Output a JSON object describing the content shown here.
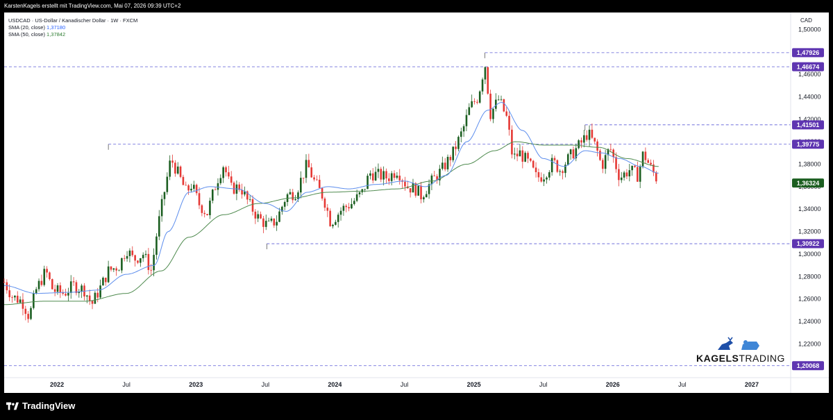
{
  "header": {
    "credit": "KarstenKagels erstellt mit TradingView.com, Mai 07, 2026 09:39 UTC+2"
  },
  "legend": {
    "symbol": "USDCAD · US-Dollar / Kanadischer Dollar · 1W · FXCM",
    "sma20_label": "SMA (20, close)",
    "sma20_value": "1,37180",
    "sma50_label": "SMA (50, close)",
    "sma50_value": "1,37842"
  },
  "currency": "CAD",
  "footer": {
    "logo_text": "TradingView"
  },
  "brand": {
    "part1": "KAGELS",
    "part2": "TRADING"
  },
  "colors": {
    "up": "#26a69a",
    "up_fill": "#1b5e20",
    "down": "#e53935",
    "sma20": "#5c8ded",
    "sma50": "#4e8a4e",
    "level_line": "#5b5bd6",
    "level_badge": "#5e35b1",
    "price_badge": "#1b5e20"
  },
  "chart_data": {
    "type": "candlestick",
    "title": "USDCAD · US-Dollar / Kanadischer Dollar · 1W · FXCM",
    "ylim": [
      1.19,
      1.515
    ],
    "y_ticks": [
      "1,50000",
      "1,48000",
      "1,46000",
      "1,44000",
      "1,42000",
      "1,40000",
      "1,38000",
      "1,36000",
      "1,34000",
      "1,32000",
      "1,30000",
      "1,28000",
      "1,26000",
      "1,24000",
      "1,22000"
    ],
    "y_tick_values": [
      1.5,
      1.48,
      1.46,
      1.44,
      1.42,
      1.4,
      1.38,
      1.36,
      1.34,
      1.32,
      1.3,
      1.28,
      1.26,
      1.24,
      1.22
    ],
    "x_ticks": [
      {
        "label": "2022",
        "t": 2022.0,
        "bold": true
      },
      {
        "label": "Jul",
        "t": 2022.5,
        "bold": false
      },
      {
        "label": "2023",
        "t": 2023.0,
        "bold": true
      },
      {
        "label": "Jul",
        "t": 2023.5,
        "bold": false
      },
      {
        "label": "2024",
        "t": 2024.0,
        "bold": true
      },
      {
        "label": "Jul",
        "t": 2024.5,
        "bold": false
      },
      {
        "label": "2025",
        "t": 2025.0,
        "bold": true
      },
      {
        "label": "Jul",
        "t": 2025.5,
        "bold": false
      },
      {
        "label": "2026",
        "t": 2026.0,
        "bold": true
      },
      {
        "label": "Jul",
        "t": 2026.5,
        "bold": false
      },
      {
        "label": "2027",
        "t": 2027.0,
        "bold": true
      }
    ],
    "xlim": [
      2021.62,
      2027.28
    ],
    "levels": [
      {
        "label": "1,47926",
        "value": 1.47926,
        "from": 2025.08
      },
      {
        "label": "1,46674",
        "value": 1.46674,
        "from": 2021.62
      },
      {
        "label": "1,41501",
        "value": 1.41501,
        "from": 2025.8
      },
      {
        "label": "1,39775",
        "value": 1.39775,
        "from": 2022.37
      },
      {
        "label": "1,30922",
        "value": 1.30922,
        "from": 2023.51
      },
      {
        "label": "1,20068",
        "value": 1.20068,
        "from": 2021.62
      }
    ],
    "last_price": {
      "label": "1,36324",
      "value": 1.36324
    },
    "anchors": [
      [
        2021.62,
        1.275
      ],
      [
        2021.68,
        1.262
      ],
      [
        2021.75,
        1.258
      ],
      [
        2021.8,
        1.244
      ],
      [
        2021.85,
        1.268
      ],
      [
        2021.92,
        1.285
      ],
      [
        2021.97,
        1.268
      ],
      [
        2022.05,
        1.265
      ],
      [
        2022.12,
        1.272
      ],
      [
        2022.2,
        1.268
      ],
      [
        2022.25,
        1.255
      ],
      [
        2022.32,
        1.272
      ],
      [
        2022.37,
        1.285
      ],
      [
        2022.45,
        1.29
      ],
      [
        2022.5,
        1.305
      ],
      [
        2022.55,
        1.295
      ],
      [
        2022.62,
        1.3
      ],
      [
        2022.68,
        1.285
      ],
      [
        2022.72,
        1.32
      ],
      [
        2022.78,
        1.36
      ],
      [
        2022.82,
        1.385
      ],
      [
        2022.87,
        1.372
      ],
      [
        2022.93,
        1.355
      ],
      [
        2022.97,
        1.362
      ],
      [
        2023.02,
        1.345
      ],
      [
        2023.08,
        1.336
      ],
      [
        2023.15,
        1.365
      ],
      [
        2023.2,
        1.38
      ],
      [
        2023.25,
        1.358
      ],
      [
        2023.32,
        1.36
      ],
      [
        2023.38,
        1.345
      ],
      [
        2023.45,
        1.332
      ],
      [
        2023.52,
        1.325
      ],
      [
        2023.58,
        1.33
      ],
      [
        2023.65,
        1.352
      ],
      [
        2023.72,
        1.355
      ],
      [
        2023.8,
        1.38
      ],
      [
        2023.85,
        1.365
      ],
      [
        2023.92,
        1.35
      ],
      [
        2023.97,
        1.328
      ],
      [
        2024.05,
        1.34
      ],
      [
        2024.12,
        1.345
      ],
      [
        2024.2,
        1.355
      ],
      [
        2024.25,
        1.372
      ],
      [
        2024.32,
        1.37
      ],
      [
        2024.38,
        1.368
      ],
      [
        2024.45,
        1.375
      ],
      [
        2024.52,
        1.36
      ],
      [
        2024.58,
        1.358
      ],
      [
        2024.62,
        1.352
      ],
      [
        2024.7,
        1.365
      ],
      [
        2024.77,
        1.375
      ],
      [
        2024.85,
        1.39
      ],
      [
        2024.92,
        1.41
      ],
      [
        2024.97,
        1.43
      ],
      [
        2025.03,
        1.44
      ],
      [
        2025.08,
        1.47
      ],
      [
        2025.12,
        1.425
      ],
      [
        2025.18,
        1.438
      ],
      [
        2025.24,
        1.42
      ],
      [
        2025.28,
        1.385
      ],
      [
        2025.33,
        1.39
      ],
      [
        2025.4,
        1.38
      ],
      [
        2025.45,
        1.368
      ],
      [
        2025.5,
        1.37
      ],
      [
        2025.57,
        1.382
      ],
      [
        2025.62,
        1.375
      ],
      [
        2025.7,
        1.388
      ],
      [
        2025.78,
        1.4
      ],
      [
        2025.82,
        1.408
      ],
      [
        2025.88,
        1.395
      ],
      [
        2025.92,
        1.378
      ],
      [
        2025.98,
        1.395
      ],
      [
        2026.05,
        1.368
      ],
      [
        2026.12,
        1.375
      ],
      [
        2026.18,
        1.37
      ],
      [
        2026.22,
        1.39
      ],
      [
        2026.28,
        1.375
      ],
      [
        2026.33,
        1.364
      ]
    ],
    "sma20_path": [
      [
        2021.62,
        1.272
      ],
      [
        2021.85,
        1.265
      ],
      [
        2022.1,
        1.266
      ],
      [
        2022.3,
        1.268
      ],
      [
        2022.5,
        1.282
      ],
      [
        2022.7,
        1.29
      ],
      [
        2022.8,
        1.32
      ],
      [
        2022.95,
        1.355
      ],
      [
        2023.1,
        1.36
      ],
      [
        2023.3,
        1.358
      ],
      [
        2023.5,
        1.345
      ],
      [
        2023.65,
        1.338
      ],
      [
        2023.8,
        1.355
      ],
      [
        2023.95,
        1.36
      ],
      [
        2024.1,
        1.358
      ],
      [
        2024.3,
        1.362
      ],
      [
        2024.5,
        1.365
      ],
      [
        2024.65,
        1.36
      ],
      [
        2024.8,
        1.37
      ],
      [
        2024.95,
        1.4
      ],
      [
        2025.1,
        1.428
      ],
      [
        2025.2,
        1.435
      ],
      [
        2025.35,
        1.41
      ],
      [
        2025.5,
        1.385
      ],
      [
        2025.65,
        1.378
      ],
      [
        2025.8,
        1.392
      ],
      [
        2025.92,
        1.39
      ],
      [
        2026.05,
        1.385
      ],
      [
        2026.2,
        1.378
      ],
      [
        2026.33,
        1.372
      ]
    ],
    "sma50_path": [
      [
        2021.62,
        1.255
      ],
      [
        2021.9,
        1.258
      ],
      [
        2022.2,
        1.258
      ],
      [
        2022.5,
        1.265
      ],
      [
        2022.75,
        1.285
      ],
      [
        2022.95,
        1.315
      ],
      [
        2023.2,
        1.335
      ],
      [
        2023.45,
        1.345
      ],
      [
        2023.7,
        1.35
      ],
      [
        2023.95,
        1.355
      ],
      [
        2024.2,
        1.356
      ],
      [
        2024.45,
        1.358
      ],
      [
        2024.7,
        1.365
      ],
      [
        2024.95,
        1.38
      ],
      [
        2025.15,
        1.392
      ],
      [
        2025.3,
        1.4
      ],
      [
        2025.5,
        1.397
      ],
      [
        2025.7,
        1.397
      ],
      [
        2025.9,
        1.395
      ],
      [
        2026.1,
        1.385
      ],
      [
        2026.33,
        1.378
      ]
    ]
  }
}
